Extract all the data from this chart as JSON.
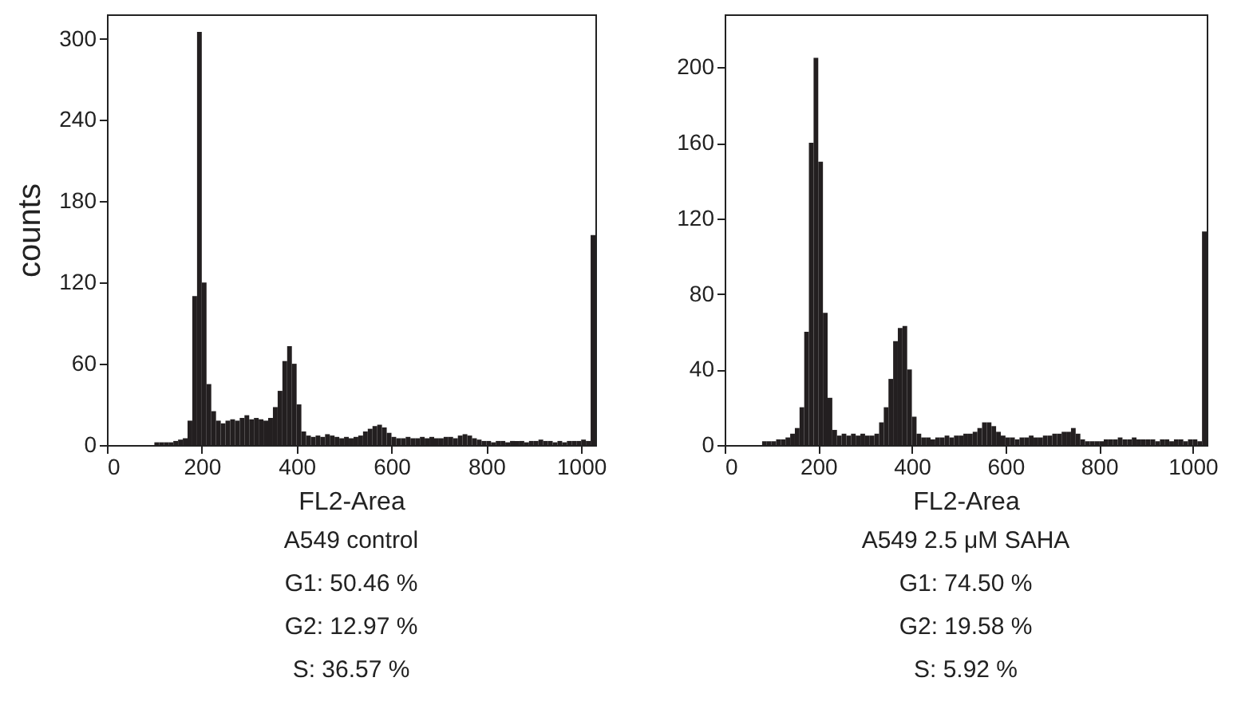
{
  "chart_data": [
    {
      "type": "histogram",
      "xlabel": "FL2-Area",
      "ylabel": "counts",
      "bins": [
        100,
        110,
        120,
        130,
        140,
        150,
        160,
        170,
        180,
        190,
        200,
        210,
        220,
        230,
        240,
        250,
        260,
        270,
        280,
        290,
        300,
        310,
        320,
        330,
        340,
        350,
        360,
        370,
        380,
        390,
        400,
        410,
        420,
        430,
        440,
        450,
        460,
        470,
        480,
        490,
        500,
        510,
        520,
        530,
        540,
        550,
        560,
        570,
        580,
        590,
        600,
        610,
        620,
        630,
        640,
        650,
        660,
        670,
        680,
        690,
        700,
        710,
        720,
        730,
        740,
        750,
        760,
        770,
        780,
        790,
        800,
        810,
        820,
        830,
        840,
        850,
        860,
        870,
        880,
        890,
        900,
        910,
        920,
        930,
        940,
        950,
        960,
        970,
        980,
        990,
        1000,
        1010,
        1020,
        1030
      ],
      "values": [
        2,
        2,
        2,
        2,
        3,
        4,
        5,
        18,
        110,
        305,
        120,
        45,
        25,
        18,
        16,
        18,
        19,
        18,
        20,
        22,
        19,
        20,
        19,
        18,
        20,
        28,
        40,
        62,
        73,
        60,
        30,
        10,
        7,
        6,
        7,
        6,
        8,
        7,
        6,
        5,
        6,
        5,
        6,
        7,
        10,
        12,
        14,
        15,
        13,
        9,
        6,
        5,
        5,
        6,
        5,
        5,
        6,
        5,
        6,
        5,
        5,
        6,
        6,
        5,
        7,
        8,
        7,
        5,
        4,
        3,
        3,
        2,
        3,
        3,
        2,
        3,
        3,
        3,
        2,
        3,
        3,
        4,
        3,
        3,
        2,
        3,
        2,
        3,
        3,
        3,
        4,
        3,
        155
      ],
      "color": "#231f20",
      "xlim": [
        0,
        1030
      ],
      "xticks": [
        0,
        200,
        400,
        600,
        800,
        1000
      ],
      "ylim": [
        0,
        318
      ],
      "yticks": [
        0,
        60,
        120,
        180,
        240,
        300
      ],
      "grid": false,
      "annotations": [
        "A549 control",
        "G1: 50.46 %",
        "G2: 12.97 %",
        "S: 36.57 %"
      ]
    },
    {
      "type": "histogram",
      "xlabel": "FL2-Area",
      "bins": [
        80,
        90,
        100,
        110,
        120,
        130,
        140,
        150,
        160,
        170,
        180,
        190,
        200,
        210,
        220,
        230,
        240,
        250,
        260,
        270,
        280,
        290,
        300,
        310,
        320,
        330,
        340,
        350,
        360,
        370,
        380,
        390,
        400,
        410,
        420,
        430,
        440,
        450,
        460,
        470,
        480,
        490,
        500,
        510,
        520,
        530,
        540,
        550,
        560,
        570,
        580,
        590,
        600,
        610,
        620,
        630,
        640,
        650,
        660,
        670,
        680,
        690,
        700,
        710,
        720,
        730,
        740,
        750,
        760,
        770,
        780,
        790,
        800,
        810,
        820,
        830,
        840,
        850,
        860,
        870,
        880,
        890,
        900,
        910,
        920,
        930,
        940,
        950,
        960,
        970,
        980,
        990,
        1000,
        1010,
        1020,
        1030
      ],
      "values": [
        2,
        2,
        2,
        3,
        3,
        4,
        6,
        9,
        20,
        60,
        160,
        205,
        150,
        70,
        25,
        8,
        5,
        6,
        5,
        6,
        5,
        6,
        5,
        5,
        6,
        12,
        20,
        35,
        55,
        62,
        63,
        40,
        15,
        6,
        4,
        4,
        3,
        4,
        4,
        5,
        4,
        5,
        5,
        6,
        6,
        7,
        9,
        12,
        12,
        10,
        7,
        5,
        4,
        4,
        3,
        4,
        4,
        5,
        4,
        4,
        5,
        5,
        6,
        6,
        7,
        7,
        9,
        6,
        3,
        2,
        2,
        2,
        2,
        3,
        3,
        3,
        4,
        3,
        3,
        4,
        3,
        3,
        3,
        3,
        2,
        3,
        3,
        2,
        3,
        3,
        2,
        3,
        3,
        2,
        113
      ],
      "color": "#231f20",
      "xlim": [
        0,
        1030
      ],
      "xticks": [
        0,
        200,
        400,
        600,
        800,
        1000
      ],
      "ylim": [
        0,
        228
      ],
      "yticks": [
        0,
        40,
        80,
        120,
        160,
        200
      ],
      "grid": false,
      "annotations": [
        "A549 2.5 μM SAHA",
        "G1: 74.50 %",
        "G2: 19.58 %",
        "S: 5.92 %"
      ]
    }
  ]
}
